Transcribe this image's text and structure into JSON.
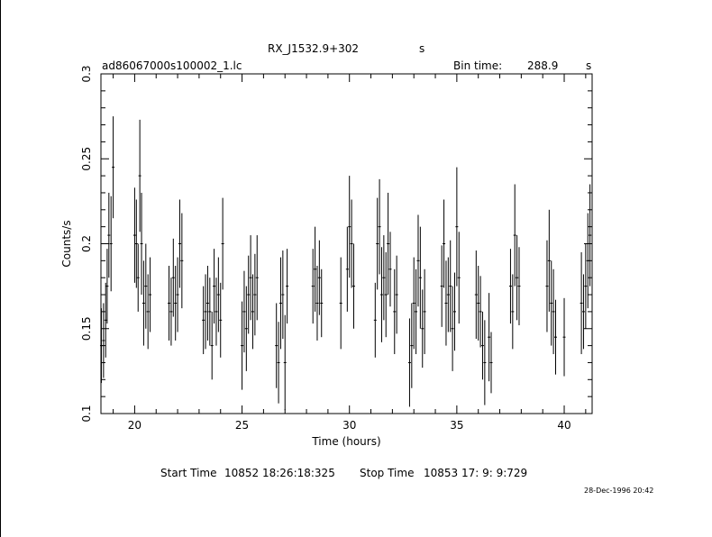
{
  "header": {
    "object_name": "RX_J1532.9+302",
    "object_suffix": "s",
    "file_name": "ad86067000s100002_1.lc",
    "bin_time_label": "Bin time:",
    "bin_time_value": "288.9",
    "bin_time_unit": "s"
  },
  "footer": {
    "start_label": "Start Time",
    "start_value": "10852 18:26:18:325",
    "stop_label": "Stop Time",
    "stop_value": "10853 17: 9: 9:729",
    "timestamp": "28-Dec-1996 20:42"
  },
  "chart_data": {
    "type": "scatter",
    "title": "RX_J1532.9+302",
    "xlabel": "Time (hours)",
    "ylabel": "Counts/s",
    "xlim": [
      18.43,
      41.3
    ],
    "ylim": [
      0.1,
      0.3
    ],
    "xticks": [
      "20",
      "25",
      "30",
      "35",
      "40"
    ],
    "yticks": [
      "0.1",
      "0.15",
      "0.2",
      "0.25",
      "0.3"
    ],
    "grid": false,
    "error_bars": true,
    "colors": {
      "axes": "#000000",
      "points": "#000000"
    },
    "series": [
      {
        "x": [
          18.45,
          18.55,
          18.65,
          18.72,
          18.8,
          18.9,
          19.0,
          20.0,
          20.08,
          20.16,
          20.24,
          20.32,
          20.42,
          20.52,
          20.62,
          20.72,
          21.6,
          21.7,
          21.8,
          21.9,
          22.0,
          22.1,
          22.2,
          23.2,
          23.3,
          23.4,
          23.5,
          23.6,
          23.7,
          23.8,
          23.9,
          24.0,
          24.1,
          25.0,
          25.1,
          25.2,
          25.3,
          25.4,
          25.5,
          25.6,
          25.7,
          26.6,
          26.7,
          26.8,
          26.9,
          27.0,
          27.1,
          28.3,
          28.4,
          28.5,
          28.6,
          28.7,
          29.6,
          29.9,
          30.0,
          30.1,
          30.2,
          31.2,
          31.3,
          31.4,
          31.5,
          31.6,
          31.7,
          31.8,
          31.9,
          32.1,
          32.2,
          32.8,
          32.9,
          33.0,
          33.1,
          33.2,
          33.3,
          33.4,
          33.5,
          34.3,
          34.4,
          34.5,
          34.6,
          34.7,
          34.8,
          34.9,
          35.0,
          35.1,
          35.9,
          36.0,
          36.1,
          36.2,
          36.3,
          36.5,
          36.6,
          37.5,
          37.6,
          37.7,
          37.8,
          37.9,
          39.2,
          39.3,
          39.4,
          39.5,
          39.6,
          40.0,
          40.8,
          40.9,
          41.0,
          41.1,
          41.2
        ],
        "y": [
          0.14,
          0.143,
          0.155,
          0.175,
          0.205,
          0.2,
          0.245,
          0.205,
          0.2,
          0.18,
          0.24,
          0.2,
          0.165,
          0.175,
          0.16,
          0.17,
          0.165,
          0.16,
          0.18,
          0.165,
          0.17,
          0.2,
          0.19,
          0.155,
          0.16,
          0.165,
          0.16,
          0.14,
          0.175,
          0.16,
          0.17,
          0.155,
          0.2,
          0.14,
          0.16,
          0.15,
          0.17,
          0.18,
          0.16,
          0.17,
          0.18,
          0.14,
          0.13,
          0.165,
          0.17,
          0.13,
          0.175,
          0.175,
          0.185,
          0.165,
          0.18,
          0.165,
          0.165,
          0.185,
          0.21,
          0.2,
          0.175,
          0.155,
          0.2,
          0.21,
          0.17,
          0.18,
          0.17,
          0.2,
          0.185,
          0.16,
          0.17,
          0.13,
          0.14,
          0.165,
          0.16,
          0.19,
          0.18,
          0.15,
          0.16,
          0.175,
          0.2,
          0.165,
          0.17,
          0.175,
          0.15,
          0.16,
          0.21,
          0.18,
          0.17,
          0.165,
          0.16,
          0.14,
          0.13,
          0.145,
          0.13,
          0.175,
          0.16,
          0.205,
          0.18,
          0.175,
          0.175,
          0.19,
          0.165,
          0.16,
          0.145,
          0.145,
          0.165,
          0.16,
          0.175,
          0.19,
          0.205
        ],
        "yerr": [
          0.022,
          0.022,
          0.022,
          0.022,
          0.025,
          0.028,
          0.03,
          0.028,
          0.026,
          0.02,
          0.033,
          0.03,
          0.025,
          0.025,
          0.022,
          0.022,
          0.022,
          0.02,
          0.023,
          0.022,
          0.022,
          0.026,
          0.028,
          0.02,
          0.022,
          0.022,
          0.02,
          0.02,
          0.022,
          0.02,
          0.022,
          0.022,
          0.027,
          0.026,
          0.024,
          0.025,
          0.023,
          0.025,
          0.022,
          0.024,
          0.025,
          0.025,
          0.024,
          0.027,
          0.026,
          0.028,
          0.022,
          0.022,
          0.025,
          0.022,
          0.022,
          0.02,
          0.027,
          0.025,
          0.03,
          0.026,
          0.025,
          0.022,
          0.027,
          0.028,
          0.028,
          0.025,
          0.025,
          0.03,
          0.022,
          0.025,
          0.023,
          0.026,
          0.025,
          0.027,
          0.025,
          0.027,
          0.03,
          0.023,
          0.025,
          0.024,
          0.026,
          0.025,
          0.022,
          0.027,
          0.025,
          0.023,
          0.035,
          0.027,
          0.026,
          0.022,
          0.021,
          0.02,
          0.025,
          0.026,
          0.018,
          0.022,
          0.022,
          0.03,
          0.025,
          0.023,
          0.027,
          0.03,
          0.025,
          0.025,
          0.022,
          0.023,
          0.03,
          0.022,
          0.025,
          0.028,
          0.03
        ]
      }
    ]
  }
}
